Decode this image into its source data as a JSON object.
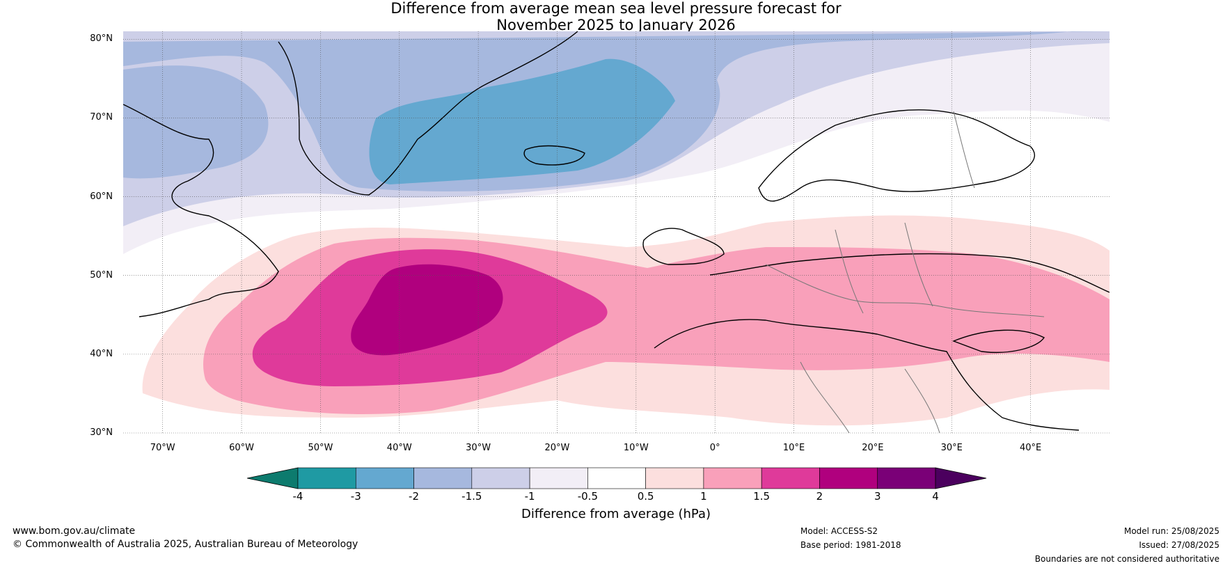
{
  "title": {
    "line1": "Difference from average mean sea level pressure forecast for",
    "line2": "November 2025 to January 2026"
  },
  "map": {
    "lat_labels": [
      "80°N",
      "70°N",
      "60°N",
      "50°N",
      "40°N",
      "30°N"
    ],
    "lon_labels": [
      "70°W",
      "60°W",
      "50°W",
      "40°W",
      "30°W",
      "20°W",
      "10°W",
      "0°",
      "10°E",
      "20°E",
      "30°E",
      "40°E"
    ]
  },
  "colorbar": {
    "label": "Difference from average (hPa)",
    "ticks": [
      "-4",
      "-3",
      "-2",
      "-1.5",
      "-1",
      "-0.5",
      "0.5",
      "1",
      "1.5",
      "2",
      "3",
      "4"
    ],
    "colors": [
      "#0d7b6e",
      "#1f9aa3",
      "#64a8d0",
      "#a6b8de",
      "#cdcfe8",
      "#f2eef6",
      "#ffffff",
      "#fcdfde",
      "#f9a0ba",
      "#df3a9a",
      "#b0007e",
      "#7a0077",
      "#4b005e"
    ]
  },
  "footer": {
    "website": "www.bom.gov.au/climate",
    "copyright": "© Commonwealth of Australia 2025, Australian Bureau of Meteorology",
    "model": "Model: ACCESS-S2",
    "base_period": "Base period: 1981-2018",
    "model_run": "Model run: 25/08/2025",
    "issued": "Issued: 27/08/2025",
    "disclaimer": "Boundaries are not considered authoritative"
  }
}
